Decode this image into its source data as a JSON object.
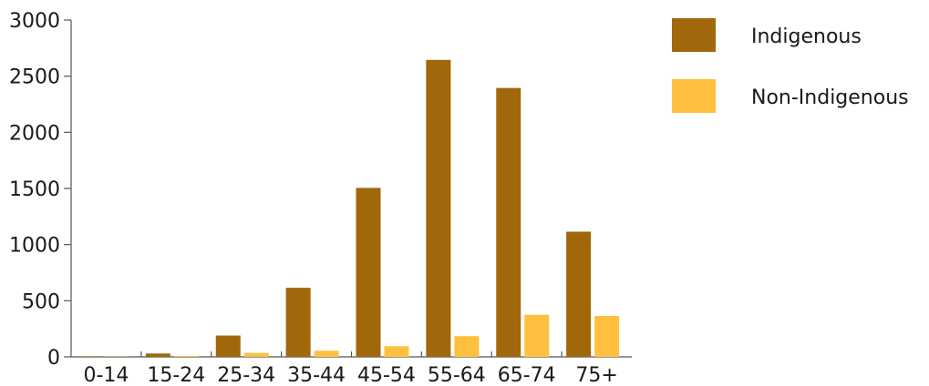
{
  "chart_data": {
    "type": "bar",
    "title": "",
    "xlabel": "",
    "ylabel": "",
    "categories": [
      "0-14",
      "15-24",
      "25-34",
      "35-44",
      "45-54",
      "55-64",
      "65-74",
      "75+"
    ],
    "series": [
      {
        "name": "Indigenous",
        "color": "#A0680A",
        "values": [
          5,
          30,
          190,
          615,
          1505,
          2645,
          2395,
          1115
        ]
      },
      {
        "name": "Non-Indigenous",
        "color": "#FFC040",
        "values": [
          2,
          8,
          35,
          55,
          95,
          185,
          375,
          365
        ]
      }
    ],
    "ylim": [
      0,
      3000
    ],
    "yticks": [
      0,
      500,
      1000,
      1500,
      2000,
      2500,
      3000
    ],
    "grid": false,
    "legend": "top-right"
  }
}
